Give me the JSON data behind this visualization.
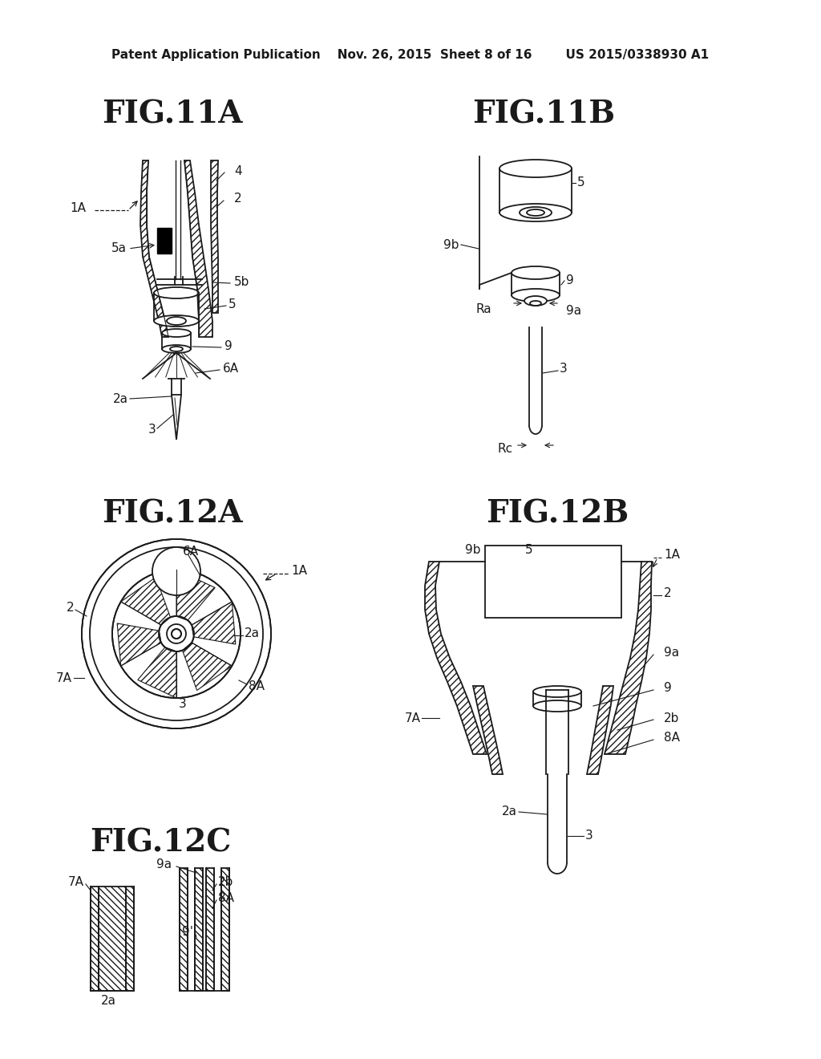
{
  "bg_color": "#ffffff",
  "lc": "#1a1a1a",
  "header": "Patent Application Publication    Nov. 26, 2015  Sheet 8 of 16        US 2015/0338930 A1",
  "fig11a": "FIG.11A",
  "fig11b": "FIG.11B",
  "fig12a": "FIG.12A",
  "fig12b": "FIG.12B",
  "fig12c": "FIG.12C",
  "title_fs": 28,
  "header_fs": 11,
  "label_fs": 11,
  "lw": 1.3
}
